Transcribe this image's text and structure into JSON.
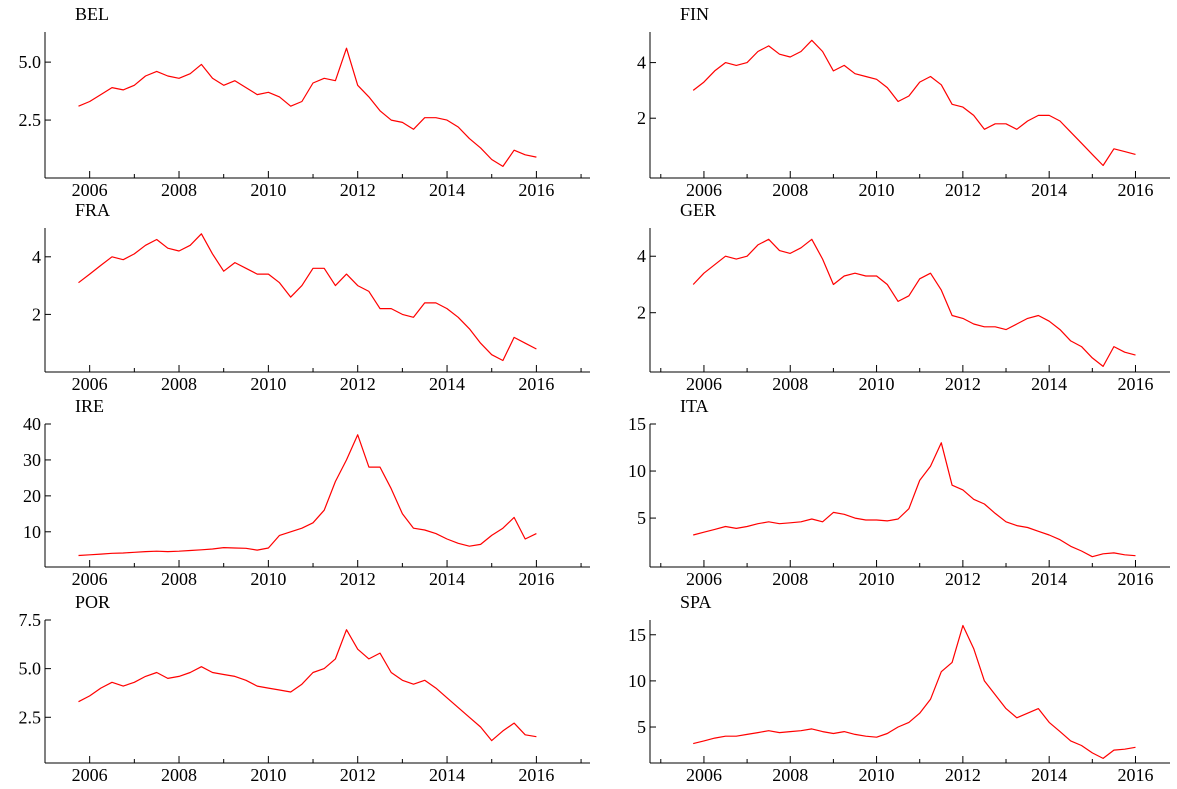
{
  "chart_data": [
    {
      "type": "line",
      "title": "BEL",
      "x": [
        2005.75,
        2006,
        2006.25,
        2006.5,
        2006.75,
        2007,
        2007.25,
        2007.5,
        2007.75,
        2008,
        2008.25,
        2008.5,
        2008.75,
        2009,
        2009.25,
        2009.5,
        2009.75,
        2010,
        2010.25,
        2010.5,
        2010.75,
        2011,
        2011.25,
        2011.5,
        2011.75,
        2012,
        2012.25,
        2012.5,
        2012.75,
        2013,
        2013.25,
        2013.5,
        2013.75,
        2014,
        2014.25,
        2014.5,
        2014.75,
        2015,
        2015.25,
        2015.5,
        2015.75,
        2016
      ],
      "values": [
        3.1,
        3.3,
        3.6,
        3.9,
        3.8,
        4.0,
        4.4,
        4.6,
        4.4,
        4.3,
        4.5,
        4.9,
        4.3,
        4.0,
        4.2,
        3.9,
        3.6,
        3.7,
        3.5,
        3.1,
        3.3,
        4.1,
        4.3,
        4.2,
        5.6,
        4.0,
        3.5,
        2.9,
        2.5,
        2.4,
        2.1,
        2.6,
        2.6,
        2.5,
        2.2,
        1.7,
        1.3,
        0.8,
        0.5,
        1.2,
        1.0,
        0.9
      ],
      "color": "#ff0000",
      "xlim": [
        2005,
        2017.2
      ],
      "xticks": [
        2006,
        2008,
        2010,
        2012,
        2014,
        2016
      ],
      "xminor": [
        2005,
        2007,
        2009,
        2011,
        2013,
        2015,
        2017
      ],
      "ylim": [
        0,
        6.3
      ],
      "yticks": [
        {
          "value": 2.5,
          "label": "2.5"
        },
        {
          "value": 5,
          "label": "5.0"
        }
      ]
    },
    {
      "type": "line",
      "title": "FIN",
      "x": [
        2005.75,
        2006,
        2006.25,
        2006.5,
        2006.75,
        2007,
        2007.25,
        2007.5,
        2007.75,
        2008,
        2008.25,
        2008.5,
        2008.75,
        2009,
        2009.25,
        2009.5,
        2009.75,
        2010,
        2010.25,
        2010.5,
        2010.75,
        2011,
        2011.25,
        2011.5,
        2011.75,
        2012,
        2012.25,
        2012.5,
        2012.75,
        2013,
        2013.25,
        2013.5,
        2013.75,
        2014,
        2014.25,
        2014.5,
        2014.75,
        2015,
        2015.25,
        2015.5,
        2015.75,
        2016
      ],
      "values": [
        3.0,
        3.3,
        3.7,
        4.0,
        3.9,
        4.0,
        4.4,
        4.6,
        4.3,
        4.2,
        4.4,
        4.8,
        4.4,
        3.7,
        3.9,
        3.6,
        3.5,
        3.4,
        3.1,
        2.6,
        2.8,
        3.3,
        3.5,
        3.2,
        2.5,
        2.4,
        2.1,
        1.6,
        1.8,
        1.8,
        1.6,
        1.9,
        2.1,
        2.1,
        1.9,
        1.5,
        1.1,
        0.7,
        0.3,
        0.9,
        0.8,
        0.7
      ],
      "color": "#ff0000",
      "xlim": [
        2004.75,
        2016.8
      ],
      "xticks": [
        2006,
        2008,
        2010,
        2012,
        2014,
        2016
      ],
      "xminor": [
        2005,
        2007,
        2009,
        2011,
        2013,
        2015
      ],
      "ylim": [
        -0.15,
        5.1
      ],
      "yticks": [
        2,
        4
      ]
    },
    {
      "type": "line",
      "title": "FRA",
      "x": [
        2005.75,
        2006,
        2006.25,
        2006.5,
        2006.75,
        2007,
        2007.25,
        2007.5,
        2007.75,
        2008,
        2008.25,
        2008.5,
        2008.75,
        2009,
        2009.25,
        2009.5,
        2009.75,
        2010,
        2010.25,
        2010.5,
        2010.75,
        2011,
        2011.25,
        2011.5,
        2011.75,
        2012,
        2012.25,
        2012.5,
        2012.75,
        2013,
        2013.25,
        2013.5,
        2013.75,
        2014,
        2014.25,
        2014.5,
        2014.75,
        2015,
        2015.25,
        2015.5,
        2015.75,
        2016
      ],
      "values": [
        3.1,
        3.4,
        3.7,
        4.0,
        3.9,
        4.1,
        4.4,
        4.6,
        4.3,
        4.2,
        4.4,
        4.8,
        4.1,
        3.5,
        3.8,
        3.6,
        3.4,
        3.4,
        3.1,
        2.6,
        3.0,
        3.6,
        3.6,
        3.0,
        3.4,
        3.0,
        2.8,
        2.2,
        2.2,
        2.0,
        1.9,
        2.4,
        2.4,
        2.2,
        1.9,
        1.5,
        1.0,
        0.6,
        0.4,
        1.2,
        1.0,
        0.8
      ],
      "color": "#ff0000",
      "xlim": [
        2005,
        2017.2
      ],
      "xticks": [
        2006,
        2008,
        2010,
        2012,
        2014,
        2016
      ],
      "xminor": [
        2005,
        2007,
        2009,
        2011,
        2013,
        2015,
        2017
      ],
      "ylim": [
        0,
        5
      ],
      "yticks": [
        2,
        4
      ]
    },
    {
      "type": "line",
      "title": "GER",
      "x": [
        2005.75,
        2006,
        2006.25,
        2006.5,
        2006.75,
        2007,
        2007.25,
        2007.5,
        2007.75,
        2008,
        2008.25,
        2008.5,
        2008.75,
        2009,
        2009.25,
        2009.5,
        2009.75,
        2010,
        2010.25,
        2010.5,
        2010.75,
        2011,
        2011.25,
        2011.5,
        2011.75,
        2012,
        2012.25,
        2012.5,
        2012.75,
        2013,
        2013.25,
        2013.5,
        2013.75,
        2014,
        2014.25,
        2014.5,
        2014.75,
        2015,
        2015.25,
        2015.5,
        2015.75,
        2016
      ],
      "values": [
        3.0,
        3.4,
        3.7,
        4.0,
        3.9,
        4.0,
        4.4,
        4.6,
        4.2,
        4.1,
        4.3,
        4.6,
        3.9,
        3.0,
        3.3,
        3.4,
        3.3,
        3.3,
        3.0,
        2.4,
        2.6,
        3.2,
        3.4,
        2.8,
        1.9,
        1.8,
        1.6,
        1.5,
        1.5,
        1.4,
        1.6,
        1.8,
        1.9,
        1.7,
        1.4,
        1.0,
        0.8,
        0.4,
        0.1,
        0.8,
        0.6,
        0.5
      ],
      "color": "#ff0000",
      "xlim": [
        2004.75,
        2016.8
      ],
      "xticks": [
        2006,
        2008,
        2010,
        2012,
        2014,
        2016
      ],
      "xminor": [
        2005,
        2007,
        2009,
        2011,
        2013,
        2015
      ],
      "ylim": [
        -0.1,
        5
      ],
      "yticks": [
        2,
        4
      ]
    },
    {
      "type": "line",
      "title": "IRE",
      "x": [
        2005.75,
        2006,
        2006.25,
        2006.5,
        2006.75,
        2007,
        2007.25,
        2007.5,
        2007.75,
        2008,
        2008.25,
        2008.5,
        2008.75,
        2009,
        2009.25,
        2009.5,
        2009.75,
        2010,
        2010.25,
        2010.5,
        2010.75,
        2011,
        2011.25,
        2011.5,
        2011.75,
        2012,
        2012.25,
        2012.5,
        2012.75,
        2013,
        2013.25,
        2013.5,
        2013.75,
        2014,
        2014.25,
        2014.5,
        2014.75,
        2015,
        2015.25,
        2015.5,
        2015.75,
        2016
      ],
      "values": [
        3.4,
        3.6,
        3.8,
        4.0,
        4.1,
        4.3,
        4.5,
        4.6,
        4.5,
        4.6,
        4.8,
        5.0,
        5.2,
        5.6,
        5.5,
        5.4,
        4.9,
        5.5,
        9.0,
        10.0,
        11.0,
        12.5,
        16.0,
        24.0,
        30.0,
        37.0,
        28.0,
        28.0,
        22.0,
        15.0,
        11.0,
        10.5,
        9.5,
        8.0,
        6.8,
        6.0,
        6.5,
        9.0,
        11.0,
        14.0,
        8.0,
        9.5
      ],
      "color": "#ff0000",
      "xlim": [
        2005,
        2017.2
      ],
      "xticks": [
        2006,
        2008,
        2010,
        2012,
        2014,
        2016
      ],
      "xminor": [
        2005,
        2007,
        2009,
        2011,
        2013,
        2015,
        2017
      ],
      "ylim": [
        0.2,
        40
      ],
      "yticks": [
        10,
        20,
        30,
        40
      ]
    },
    {
      "type": "line",
      "title": "ITA",
      "x": [
        2005.75,
        2006,
        2006.25,
        2006.5,
        2006.75,
        2007,
        2007.25,
        2007.5,
        2007.75,
        2008,
        2008.25,
        2008.5,
        2008.75,
        2009,
        2009.25,
        2009.5,
        2009.75,
        2010,
        2010.25,
        2010.5,
        2010.75,
        2011,
        2011.25,
        2011.5,
        2011.75,
        2012,
        2012.25,
        2012.5,
        2012.75,
        2013,
        2013.25,
        2013.5,
        2013.75,
        2014,
        2014.25,
        2014.5,
        2014.75,
        2015,
        2015.25,
        2015.5,
        2015.75,
        2016
      ],
      "values": [
        3.2,
        3.5,
        3.8,
        4.1,
        3.9,
        4.1,
        4.4,
        4.6,
        4.4,
        4.5,
        4.6,
        4.9,
        4.6,
        5.6,
        5.4,
        5.0,
        4.8,
        4.8,
        4.7,
        4.9,
        6.0,
        9.0,
        10.5,
        13.0,
        8.5,
        8.0,
        7.0,
        6.5,
        5.5,
        4.6,
        4.2,
        4.0,
        3.6,
        3.2,
        2.7,
        2.0,
        1.5,
        0.9,
        1.2,
        1.3,
        1.1,
        1.0
      ],
      "color": "#ff0000",
      "xlim": [
        2004.75,
        2016.8
      ],
      "xticks": [
        2006,
        2008,
        2010,
        2012,
        2014,
        2016
      ],
      "xminor": [
        2005,
        2007,
        2009,
        2011,
        2013,
        2015
      ],
      "ylim": [
        -0.2,
        15
      ],
      "yticks": [
        5,
        10,
        15
      ]
    },
    {
      "type": "line",
      "title": "POR",
      "x": [
        2005.75,
        2006,
        2006.25,
        2006.5,
        2006.75,
        2007,
        2007.25,
        2007.5,
        2007.75,
        2008,
        2008.25,
        2008.5,
        2008.75,
        2009,
        2009.25,
        2009.5,
        2009.75,
        2010,
        2010.25,
        2010.5,
        2010.75,
        2011,
        2011.25,
        2011.5,
        2011.75,
        2012,
        2012.25,
        2012.5,
        2012.75,
        2013,
        2013.25,
        2013.5,
        2013.75,
        2014,
        2014.25,
        2014.5,
        2014.75,
        2015,
        2015.25,
        2015.5,
        2015.75,
        2016
      ],
      "values": [
        3.3,
        3.6,
        4.0,
        4.3,
        4.1,
        4.3,
        4.6,
        4.8,
        4.5,
        4.6,
        4.8,
        5.1,
        4.8,
        4.7,
        4.6,
        4.4,
        4.1,
        4.0,
        3.9,
        3.8,
        4.2,
        4.8,
        5.0,
        5.5,
        7.0,
        6.0,
        5.5,
        5.8,
        4.8,
        4.4,
        4.2,
        4.4,
        4.0,
        3.5,
        3.0,
        2.5,
        2.0,
        1.3,
        1.8,
        2.2,
        1.6,
        1.5
      ],
      "color": "#ff0000",
      "xlim": [
        2005,
        2017.2
      ],
      "xticks": [
        2006,
        2008,
        2010,
        2012,
        2014,
        2016
      ],
      "xminor": [
        2005,
        2007,
        2009,
        2011,
        2013,
        2015,
        2017
      ],
      "ylim": [
        0.15,
        7.5
      ],
      "yticks": [
        {
          "value": 2.5,
          "label": "2.5"
        },
        {
          "value": 5,
          "label": "5.0"
        },
        {
          "value": 7.5,
          "label": "7.5"
        }
      ]
    },
    {
      "type": "line",
      "title": "SPA",
      "x": [
        2005.75,
        2006,
        2006.25,
        2006.5,
        2006.75,
        2007,
        2007.25,
        2007.5,
        2007.75,
        2008,
        2008.25,
        2008.5,
        2008.75,
        2009,
        2009.25,
        2009.5,
        2009.75,
        2010,
        2010.25,
        2010.5,
        2010.75,
        2011,
        2011.25,
        2011.5,
        2011.75,
        2012,
        2012.25,
        2012.5,
        2012.75,
        2013,
        2013.25,
        2013.5,
        2013.75,
        2014,
        2014.25,
        2014.5,
        2014.75,
        2015,
        2015.25,
        2015.5,
        2015.75,
        2016
      ],
      "values": [
        3.2,
        3.5,
        3.8,
        4.0,
        4.0,
        4.2,
        4.4,
        4.6,
        4.4,
        4.5,
        4.6,
        4.8,
        4.5,
        4.3,
        4.5,
        4.2,
        4.0,
        3.9,
        4.3,
        5.0,
        5.5,
        6.5,
        8.0,
        11.0,
        12.0,
        16.0,
        13.5,
        10.0,
        8.5,
        7.0,
        6.0,
        6.5,
        7.0,
        5.5,
        4.5,
        3.5,
        3.0,
        2.2,
        1.6,
        2.5,
        2.6,
        2.8
      ],
      "color": "#ff0000",
      "xlim": [
        2004.75,
        2016.8
      ],
      "xticks": [
        2006,
        2008,
        2010,
        2012,
        2014,
        2016
      ],
      "xminor": [
        2005,
        2007,
        2009,
        2011,
        2013,
        2015
      ],
      "ylim": [
        1.1,
        16.6
      ],
      "yticks": [
        5,
        10,
        15
      ]
    }
  ]
}
